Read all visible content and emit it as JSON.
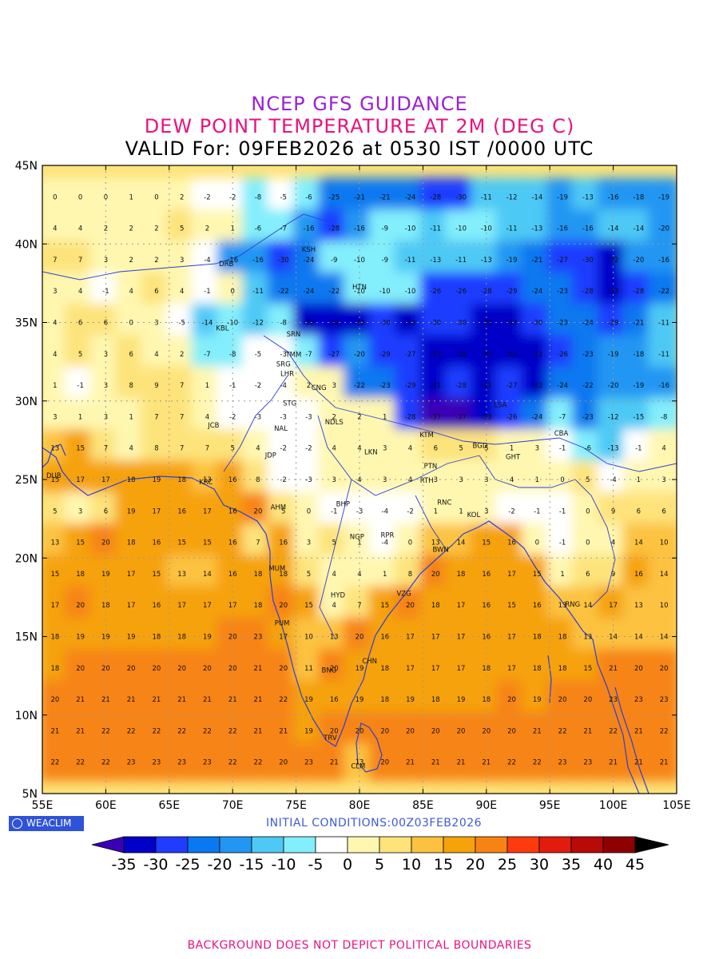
{
  "title": {
    "line1": "NCEP GFS GUIDANCE",
    "line2": "DEW POINT TEMPERATURE AT 2M (DEG C)",
    "line3": "VALID For: 09FEB2026 at 0530 IST /0000 UTC"
  },
  "logo": "WEACLIM",
  "initial_conditions": "INITIAL CONDITIONS:00Z03FEB2026",
  "footer": "BACKGROUND DOES NOT DEPICT POLITICAL BOUNDARIES",
  "colors": {
    "title1": "#9b1fd6",
    "title2": "#e8137f",
    "footer": "#e8137f",
    "init": "#3d5bd9",
    "grid": "#9a9a9a",
    "coast": "#2b3fd6"
  },
  "map": {
    "lon_range": [
      55,
      105
    ],
    "lat_range": [
      5,
      45
    ],
    "lon_ticks": [
      "55E",
      "60E",
      "65E",
      "70E",
      "75E",
      "80E",
      "85E",
      "90E",
      "95E",
      "100E",
      "105E"
    ],
    "lat_ticks": [
      "5N",
      "10N",
      "15N",
      "20N",
      "25N",
      "30N",
      "35N",
      "40N",
      "45N"
    ],
    "stations": [
      {
        "label": "KSH",
        "lon": 76.0,
        "lat": 39.5
      },
      {
        "label": "DRB",
        "lon": 69.5,
        "lat": 38.6
      },
      {
        "label": "HTN",
        "lon": 80.0,
        "lat": 37.1
      },
      {
        "label": "KBL",
        "lon": 69.2,
        "lat": 34.5
      },
      {
        "label": "SRN",
        "lon": 74.8,
        "lat": 34.1
      },
      {
        "label": "TMM",
        "lon": 74.8,
        "lat": 32.8
      },
      {
        "label": "SRG",
        "lon": 74.0,
        "lat": 32.2
      },
      {
        "label": "LHR",
        "lon": 74.3,
        "lat": 31.6
      },
      {
        "label": "CNG",
        "lon": 76.8,
        "lat": 30.7
      },
      {
        "label": "STG",
        "lon": 74.5,
        "lat": 29.7
      },
      {
        "label": "JCB",
        "lon": 68.5,
        "lat": 28.3
      },
      {
        "label": "NAL",
        "lon": 73.8,
        "lat": 28.1
      },
      {
        "label": "NDLS",
        "lon": 78.0,
        "lat": 28.5
      },
      {
        "label": "LSA",
        "lon": 91.1,
        "lat": 29.6
      },
      {
        "label": "JDP",
        "lon": 73.0,
        "lat": 26.4
      },
      {
        "label": "LKN",
        "lon": 80.9,
        "lat": 26.6
      },
      {
        "label": "KTM",
        "lon": 85.3,
        "lat": 27.7
      },
      {
        "label": "BGD",
        "lon": 89.5,
        "lat": 27.0
      },
      {
        "label": "CBA",
        "lon": 95.9,
        "lat": 27.8
      },
      {
        "label": "GHT",
        "lon": 92.1,
        "lat": 26.3
      },
      {
        "label": "PTN",
        "lon": 85.6,
        "lat": 25.7
      },
      {
        "label": "DUB",
        "lon": 55.9,
        "lat": 25.1
      },
      {
        "label": "KRC",
        "lon": 67.9,
        "lat": 24.7
      },
      {
        "label": "RTH",
        "lon": 85.3,
        "lat": 24.8
      },
      {
        "label": "BHP",
        "lon": 78.7,
        "lat": 23.3
      },
      {
        "label": "AHM",
        "lon": 73.6,
        "lat": 23.1
      },
      {
        "label": "RNC",
        "lon": 86.7,
        "lat": 23.4
      },
      {
        "label": "KOL",
        "lon": 89.0,
        "lat": 22.6
      },
      {
        "label": "NGP",
        "lon": 79.8,
        "lat": 21.2
      },
      {
        "label": "RPR",
        "lon": 82.2,
        "lat": 21.3
      },
      {
        "label": "BWN",
        "lon": 86.4,
        "lat": 20.4
      },
      {
        "label": "MUM",
        "lon": 73.5,
        "lat": 19.2
      },
      {
        "label": "HYD",
        "lon": 78.3,
        "lat": 17.5
      },
      {
        "label": "VZG",
        "lon": 83.5,
        "lat": 17.6
      },
      {
        "label": "RNG",
        "lon": 96.8,
        "lat": 16.9
      },
      {
        "label": "PUM",
        "lon": 73.9,
        "lat": 15.7
      },
      {
        "label": "CHN",
        "lon": 80.8,
        "lat": 13.3
      },
      {
        "label": "BNG",
        "lon": 77.6,
        "lat": 12.7
      },
      {
        "label": "TRV",
        "lon": 77.7,
        "lat": 8.4
      },
      {
        "label": "CLM",
        "lon": 79.9,
        "lat": 6.6
      }
    ],
    "value_rows": [
      {
        "lat": 43,
        "values": [
          0,
          0,
          0,
          1,
          0,
          2,
          -2,
          -2,
          -8,
          -5,
          -6,
          -25,
          -21,
          -21,
          -24,
          -28,
          -30,
          -11,
          -12,
          -14,
          -19,
          -13,
          -16,
          -18,
          -19
        ]
      },
      {
        "lat": 41,
        "values": [
          4,
          4,
          2,
          2,
          2,
          5,
          2,
          1,
          -6,
          -7,
          -16,
          -28,
          -16,
          -9,
          -10,
          -11,
          -10,
          -10,
          -11,
          -13,
          -16,
          -16,
          -14,
          -14,
          -20
        ]
      },
      {
        "lat": 39,
        "values": [
          7,
          7,
          3,
          2,
          2,
          3,
          -4,
          -16,
          -16,
          -30,
          -24,
          -9,
          -10,
          -9,
          -11,
          -13,
          -11,
          -13,
          -19,
          -21,
          -27,
          -30,
          -32,
          -20,
          -16
        ]
      },
      {
        "lat": 37,
        "values": [
          3,
          4,
          -1,
          4,
          6,
          4,
          -1,
          0,
          -11,
          -22,
          -24,
          -22,
          -10,
          -10,
          -10,
          -26,
          -26,
          -28,
          -29,
          -24,
          -23,
          -28,
          -33,
          -28,
          -22
        ]
      },
      {
        "lat": 35,
        "values": [
          4,
          6,
          6,
          0,
          3,
          -5,
          -14,
          -10,
          -12,
          -8,
          -32,
          -32,
          -32,
          -30,
          -33,
          -30,
          -30,
          -33,
          -33,
          -30,
          -23,
          -24,
          -29,
          -21,
          -11
        ]
      },
      {
        "lat": 33,
        "values": [
          4,
          5,
          3,
          6,
          4,
          2,
          -7,
          -8,
          -5,
          -3,
          -7,
          -27,
          -20,
          -29,
          -27,
          -33,
          -32,
          -33,
          -32,
          -32,
          -26,
          -23,
          -19,
          -18,
          -11
        ]
      },
      {
        "lat": 31,
        "values": [
          1,
          -1,
          3,
          8,
          9,
          7,
          1,
          -1,
          -2,
          -4,
          2,
          3,
          -22,
          -23,
          -29,
          -31,
          -28,
          -31,
          -27,
          -32,
          -24,
          -22,
          -20,
          -19,
          -16
        ]
      },
      {
        "lat": 29,
        "values": [
          3,
          1,
          3,
          1,
          7,
          7,
          4,
          -2,
          -3,
          -3,
          -3,
          2,
          2,
          1,
          -28,
          -37,
          -37,
          -33,
          -26,
          -24,
          -7,
          -23,
          -12,
          -15,
          -8
        ]
      },
      {
        "lat": 27,
        "values": [
          13,
          15,
          7,
          4,
          8,
          7,
          7,
          5,
          4,
          -2,
          -2,
          4,
          4,
          3,
          4,
          6,
          5,
          5,
          1,
          3,
          -1,
          -6,
          -13,
          -1,
          4
        ]
      },
      {
        "lat": 25,
        "values": [
          15,
          17,
          17,
          18,
          19,
          18,
          13,
          16,
          8,
          -2,
          -3,
          3,
          4,
          3,
          4,
          3,
          3,
          3,
          4,
          1,
          0,
          5,
          -4,
          1,
          3
        ]
      },
      {
        "lat": 23,
        "values": [
          5,
          3,
          6,
          19,
          17,
          16,
          17,
          16,
          20,
          5,
          0,
          -1,
          -3,
          -4,
          -2,
          1,
          1,
          3,
          -2,
          -1,
          -1,
          0,
          9,
          6,
          6
        ]
      },
      {
        "lat": 21,
        "values": [
          13,
          15,
          20,
          18,
          16,
          15,
          15,
          16,
          7,
          16,
          3,
          5,
          1,
          -4,
          0,
          13,
          14,
          15,
          16,
          0,
          -1,
          0,
          4,
          14,
          10
        ]
      },
      {
        "lat": 19,
        "values": [
          15,
          18,
          19,
          17,
          15,
          13,
          14,
          16,
          18,
          18,
          5,
          4,
          4,
          1,
          8,
          20,
          18,
          16,
          17,
          15,
          1,
          6,
          9,
          16,
          14
        ]
      },
      {
        "lat": 17,
        "values": [
          17,
          20,
          18,
          17,
          16,
          17,
          17,
          17,
          18,
          20,
          15,
          4,
          7,
          15,
          20,
          18,
          17,
          16,
          15,
          16,
          13,
          14,
          17,
          13,
          10
        ]
      },
      {
        "lat": 15,
        "values": [
          18,
          19,
          19,
          19,
          18,
          18,
          19,
          20,
          23,
          17,
          10,
          13,
          20,
          16,
          17,
          17,
          17,
          16,
          17,
          18,
          18,
          13,
          14,
          14,
          14
        ]
      },
      {
        "lat": 13,
        "values": [
          18,
          20,
          20,
          20,
          20,
          20,
          20,
          20,
          21,
          20,
          11,
          20,
          19,
          18,
          17,
          17,
          17,
          18,
          17,
          18,
          18,
          15,
          21,
          20,
          20
        ]
      },
      {
        "lat": 11,
        "values": [
          20,
          21,
          21,
          21,
          21,
          21,
          21,
          21,
          21,
          22,
          19,
          16,
          19,
          18,
          19,
          18,
          19,
          18,
          20,
          19,
          20,
          20,
          23,
          23,
          23
        ]
      },
      {
        "lat": 9,
        "values": [
          21,
          21,
          22,
          22,
          22,
          22,
          22,
          22,
          21,
          21,
          19,
          20,
          20,
          20,
          20,
          20,
          20,
          20,
          20,
          21,
          22,
          21,
          22,
          21,
          22
        ]
      },
      {
        "lat": 7,
        "values": [
          22,
          22,
          22,
          23,
          23,
          23,
          23,
          22,
          22,
          20,
          23,
          21,
          13,
          20,
          21,
          21,
          21,
          21,
          22,
          22,
          23,
          23,
          21,
          21,
          21
        ]
      }
    ]
  },
  "legend": {
    "labels": [
      "-35",
      "-30",
      "-25",
      "-20",
      "-15",
      "-10",
      "-5",
      "0",
      "5",
      "10",
      "15",
      "20",
      "25",
      "30",
      "35",
      "40",
      "45"
    ],
    "colors": [
      "#3a00b5",
      "#0000c8",
      "#1f3cff",
      "#0a78f0",
      "#2196f3",
      "#4ec9f5",
      "#83eefc",
      "#ffffff",
      "#fff7b0",
      "#fde37a",
      "#fcc23f",
      "#f6a20b",
      "#f78412",
      "#ff3b0d",
      "#e21c0c",
      "#b80a06",
      "#8f0000",
      "#000000"
    ]
  }
}
